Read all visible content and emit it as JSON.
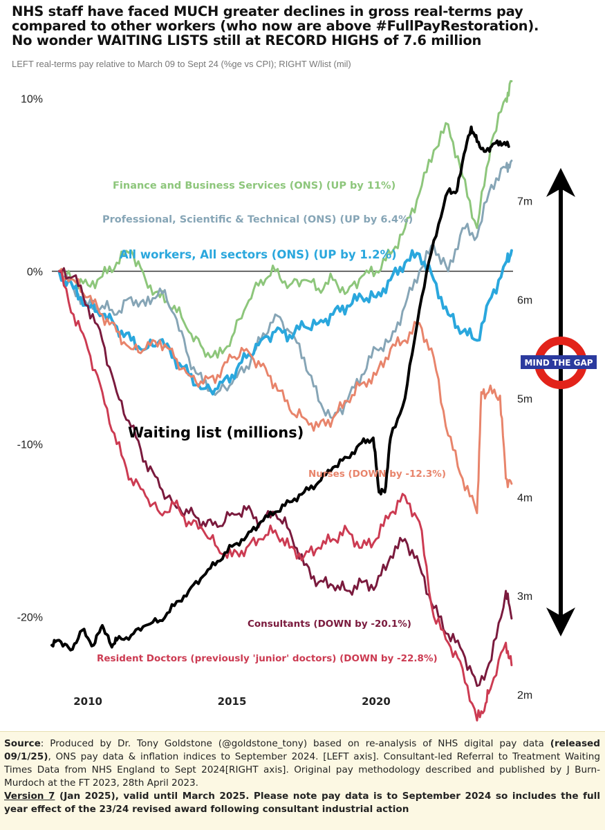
{
  "header": {
    "title_lines": [
      "NHS staff have faced MUCH greater declines in gross real-terms pay",
      "compared to other workers (who now are above #FullPayRestoration).",
      "No wonder WAITING LISTS still at RECORD HIGHS of 7.6 million"
    ],
    "subtitle": "LEFT real-terms pay relative to March 09 to Sept 24 (%ge vs CPI); RIGHT W/list (mil)"
  },
  "chart_data": {
    "type": "line",
    "x_range": [
      2008.75,
      2024.75
    ],
    "x_ticks": [
      2010,
      2015,
      2020
    ],
    "x_tick_labels": [
      "2010",
      "2015",
      "2020"
    ],
    "left_axis": {
      "range": [
        -26.5,
        11.5
      ],
      "ticks": [
        10,
        0,
        -10,
        -20
      ],
      "tick_labels": [
        "10%",
        "0%",
        "-10%",
        "-20%"
      ]
    },
    "right_axis": {
      "range": [
        1.65,
        8.3
      ],
      "ticks": [
        7,
        6,
        5,
        4,
        3,
        2
      ],
      "tick_labels": [
        "7m",
        "6m",
        "5m",
        "4m",
        "3m",
        "2m"
      ]
    },
    "zero_line": true,
    "grid": false,
    "series": [
      {
        "name": "Finance and Business Services (ONS) (UP by 11%)",
        "axis": "left",
        "color": "#8dc67b",
        "width": 3,
        "points": [
          [
            2009.0,
            0.0
          ],
          [
            2009.5,
            -0.5
          ],
          [
            2010.0,
            -0.8
          ],
          [
            2010.5,
            -0.3
          ],
          [
            2011.0,
            0.5
          ],
          [
            2011.5,
            1.2
          ],
          [
            2012.0,
            -0.5
          ],
          [
            2012.5,
            -1.5
          ],
          [
            2013.0,
            -2.0
          ],
          [
            2013.5,
            -3.5
          ],
          [
            2014.0,
            -4.5
          ],
          [
            2014.5,
            -5.0
          ],
          [
            2015.0,
            -3.8
          ],
          [
            2015.5,
            -2.0
          ],
          [
            2016.0,
            -0.5
          ],
          [
            2016.5,
            0.0
          ],
          [
            2017.0,
            -0.8
          ],
          [
            2017.5,
            -0.5
          ],
          [
            2018.0,
            -1.0
          ],
          [
            2018.5,
            -0.5
          ],
          [
            2019.0,
            -1.2
          ],
          [
            2019.5,
            -0.3
          ],
          [
            2020.0,
            0.0
          ],
          [
            2020.5,
            1.0
          ],
          [
            2021.0,
            2.5
          ],
          [
            2021.5,
            4.5
          ],
          [
            2022.0,
            7.0
          ],
          [
            2022.5,
            8.5
          ],
          [
            2023.0,
            5.5
          ],
          [
            2023.5,
            2.5
          ],
          [
            2024.0,
            7.5
          ],
          [
            2024.5,
            10.0
          ],
          [
            2024.7,
            11.0
          ]
        ]
      },
      {
        "name": "Professional, Scientific & Technical (ONS) (UP by 6.4%)",
        "axis": "left",
        "color": "#86a5b6",
        "width": 3,
        "points": [
          [
            2009.0,
            0.0
          ],
          [
            2009.5,
            -1.0
          ],
          [
            2010.0,
            -2.0
          ],
          [
            2010.5,
            -2.0
          ],
          [
            2011.0,
            -2.5
          ],
          [
            2011.5,
            -1.5
          ],
          [
            2012.0,
            -2.0
          ],
          [
            2012.5,
            -1.0
          ],
          [
            2013.0,
            -2.5
          ],
          [
            2013.5,
            -5.0
          ],
          [
            2014.0,
            -6.5
          ],
          [
            2014.5,
            -7.0
          ],
          [
            2015.0,
            -6.5
          ],
          [
            2015.5,
            -5.5
          ],
          [
            2016.0,
            -4.0
          ],
          [
            2016.5,
            -2.5
          ],
          [
            2017.0,
            -3.5
          ],
          [
            2017.5,
            -5.0
          ],
          [
            2018.0,
            -7.5
          ],
          [
            2018.5,
            -8.5
          ],
          [
            2019.0,
            -7.5
          ],
          [
            2019.5,
            -6.0
          ],
          [
            2020.0,
            -4.5
          ],
          [
            2020.5,
            -4.0
          ],
          [
            2021.0,
            -2.0
          ],
          [
            2021.5,
            0.0
          ],
          [
            2022.0,
            1.5
          ],
          [
            2022.5,
            0.0
          ],
          [
            2023.0,
            2.5
          ],
          [
            2023.5,
            2.0
          ],
          [
            2024.0,
            5.0
          ],
          [
            2024.5,
            6.0
          ],
          [
            2024.7,
            6.4
          ]
        ]
      },
      {
        "name": "All workers, All sectors (ONS) (UP by 1.2%)",
        "axis": "left",
        "color": "#2aa7dd",
        "width": 4,
        "points": [
          [
            2009.0,
            0.0
          ],
          [
            2009.5,
            -1.0
          ],
          [
            2010.0,
            -2.0
          ],
          [
            2010.5,
            -2.5
          ],
          [
            2011.0,
            -3.2
          ],
          [
            2011.5,
            -4.0
          ],
          [
            2012.0,
            -4.5
          ],
          [
            2012.5,
            -4.0
          ],
          [
            2013.0,
            -5.0
          ],
          [
            2013.5,
            -6.0
          ],
          [
            2014.0,
            -6.8
          ],
          [
            2014.5,
            -6.8
          ],
          [
            2015.0,
            -6.0
          ],
          [
            2015.5,
            -5.0
          ],
          [
            2016.0,
            -4.0
          ],
          [
            2016.5,
            -3.5
          ],
          [
            2017.0,
            -3.7
          ],
          [
            2017.5,
            -3.2
          ],
          [
            2018.0,
            -3.0
          ],
          [
            2018.5,
            -2.5
          ],
          [
            2019.0,
            -2.0
          ],
          [
            2019.5,
            -1.5
          ],
          [
            2020.0,
            -1.5
          ],
          [
            2020.5,
            -0.5
          ],
          [
            2021.0,
            0.5
          ],
          [
            2021.5,
            1.0
          ],
          [
            2022.0,
            -0.5
          ],
          [
            2022.5,
            -2.5
          ],
          [
            2023.0,
            -3.5
          ],
          [
            2023.5,
            -4.0
          ],
          [
            2024.0,
            -1.5
          ],
          [
            2024.5,
            0.5
          ],
          [
            2024.7,
            1.2
          ]
        ]
      },
      {
        "name": "Nurses (DOWN by -12.3%)",
        "axis": "left",
        "color": "#e8846b",
        "width": 3,
        "points": [
          [
            2009.0,
            0.0
          ],
          [
            2009.5,
            -0.5
          ],
          [
            2010.0,
            -1.5
          ],
          [
            2010.5,
            -2.5
          ],
          [
            2011.0,
            -3.5
          ],
          [
            2011.5,
            -4.5
          ],
          [
            2012.0,
            -4.5
          ],
          [
            2012.5,
            -4.0
          ],
          [
            2013.0,
            -5.0
          ],
          [
            2013.5,
            -6.0
          ],
          [
            2014.0,
            -6.5
          ],
          [
            2014.5,
            -6.0
          ],
          [
            2015.0,
            -5.0
          ],
          [
            2015.5,
            -4.5
          ],
          [
            2016.0,
            -5.5
          ],
          [
            2016.5,
            -6.5
          ],
          [
            2017.0,
            -8.0
          ],
          [
            2017.5,
            -8.5
          ],
          [
            2018.0,
            -9.0
          ],
          [
            2018.5,
            -8.5
          ],
          [
            2019.0,
            -7.5
          ],
          [
            2019.5,
            -6.5
          ],
          [
            2020.0,
            -6.0
          ],
          [
            2020.5,
            -4.5
          ],
          [
            2021.0,
            -4.0
          ],
          [
            2021.5,
            -3.0
          ],
          [
            2022.0,
            -5.0
          ],
          [
            2022.5,
            -9.5
          ],
          [
            2023.0,
            -12.0
          ],
          [
            2023.5,
            -14.0
          ],
          [
            2023.65,
            -7.0
          ],
          [
            2023.9,
            -7.0
          ],
          [
            2024.3,
            -7.2
          ],
          [
            2024.5,
            -12.0
          ],
          [
            2024.7,
            -12.3
          ]
        ]
      },
      {
        "name": "Consultants (DOWN by -20.1%)",
        "axis": "left",
        "color": "#7a1a3d",
        "width": 3,
        "points": [
          [
            2009.0,
            0.0
          ],
          [
            2009.5,
            -0.3
          ],
          [
            2010.0,
            -2.0
          ],
          [
            2010.5,
            -4.0
          ],
          [
            2011.0,
            -7.0
          ],
          [
            2011.5,
            -9.0
          ],
          [
            2012.0,
            -11.0
          ],
          [
            2012.5,
            -12.5
          ],
          [
            2013.0,
            -13.5
          ],
          [
            2013.5,
            -14.0
          ],
          [
            2014.0,
            -14.5
          ],
          [
            2014.5,
            -14.8
          ],
          [
            2015.0,
            -14.0
          ],
          [
            2015.5,
            -13.8
          ],
          [
            2016.0,
            -14.5
          ],
          [
            2016.5,
            -14.0
          ],
          [
            2017.0,
            -15.0
          ],
          [
            2017.5,
            -17.0
          ],
          [
            2018.0,
            -18.0
          ],
          [
            2018.5,
            -18.2
          ],
          [
            2019.0,
            -18.5
          ],
          [
            2019.5,
            -18.0
          ],
          [
            2020.0,
            -18.2
          ],
          [
            2020.5,
            -16.5
          ],
          [
            2021.0,
            -15.5
          ],
          [
            2021.5,
            -17.0
          ],
          [
            2022.0,
            -19.5
          ],
          [
            2022.5,
            -21.0
          ],
          [
            2023.0,
            -22.0
          ],
          [
            2023.5,
            -24.0
          ],
          [
            2024.0,
            -22.5
          ],
          [
            2024.5,
            -18.5
          ],
          [
            2024.7,
            -20.1
          ]
        ]
      },
      {
        "name": "Resident Doctors (previously 'junior' doctors) (DOWN by -22.8%)",
        "axis": "left",
        "color": "#cc3b52",
        "width": 3,
        "points": [
          [
            2009.0,
            0.0
          ],
          [
            2009.5,
            -2.5
          ],
          [
            2010.0,
            -4.5
          ],
          [
            2010.5,
            -7.0
          ],
          [
            2011.0,
            -10.0
          ],
          [
            2011.5,
            -12.0
          ],
          [
            2012.0,
            -13.0
          ],
          [
            2012.5,
            -14.0
          ],
          [
            2013.0,
            -13.5
          ],
          [
            2013.5,
            -14.5
          ],
          [
            2014.0,
            -15.0
          ],
          [
            2014.5,
            -16.0
          ],
          [
            2015.0,
            -16.5
          ],
          [
            2015.5,
            -16.0
          ],
          [
            2016.0,
            -15.5
          ],
          [
            2016.5,
            -15.0
          ],
          [
            2017.0,
            -16.0
          ],
          [
            2017.5,
            -16.5
          ],
          [
            2018.0,
            -16.0
          ],
          [
            2018.5,
            -15.5
          ],
          [
            2019.0,
            -15.0
          ],
          [
            2019.5,
            -16.0
          ],
          [
            2020.0,
            -15.5
          ],
          [
            2020.5,
            -14.0
          ],
          [
            2021.0,
            -13.0
          ],
          [
            2021.5,
            -14.5
          ],
          [
            2022.0,
            -20.0
          ],
          [
            2022.5,
            -21.5
          ],
          [
            2023.0,
            -23.0
          ],
          [
            2023.5,
            -26.0
          ],
          [
            2023.8,
            -25.0
          ],
          [
            2024.0,
            -24.0
          ],
          [
            2024.5,
            -21.5
          ],
          [
            2024.7,
            -22.8
          ]
        ]
      },
      {
        "name": "Waiting list (millions)",
        "axis": "right",
        "color": "#000000",
        "width": 4,
        "points": [
          [
            2008.75,
            2.5
          ],
          [
            2009.0,
            2.55
          ],
          [
            2009.4,
            2.45
          ],
          [
            2009.8,
            2.65
          ],
          [
            2010.2,
            2.5
          ],
          [
            2010.5,
            2.7
          ],
          [
            2010.8,
            2.5
          ],
          [
            2011.0,
            2.55
          ],
          [
            2011.5,
            2.6
          ],
          [
            2012.0,
            2.7
          ],
          [
            2012.5,
            2.75
          ],
          [
            2013.0,
            2.9
          ],
          [
            2013.5,
            3.05
          ],
          [
            2014.0,
            3.2
          ],
          [
            2014.5,
            3.35
          ],
          [
            2015.0,
            3.5
          ],
          [
            2015.5,
            3.6
          ],
          [
            2016.0,
            3.75
          ],
          [
            2016.5,
            3.85
          ],
          [
            2017.0,
            3.95
          ],
          [
            2017.5,
            4.05
          ],
          [
            2018.0,
            4.15
          ],
          [
            2018.5,
            4.3
          ],
          [
            2019.0,
            4.4
          ],
          [
            2019.5,
            4.55
          ],
          [
            2019.9,
            4.6
          ],
          [
            2020.1,
            4.05
          ],
          [
            2020.3,
            4.05
          ],
          [
            2020.5,
            4.6
          ],
          [
            2021.0,
            5.0
          ],
          [
            2021.5,
            5.9
          ],
          [
            2022.0,
            6.6
          ],
          [
            2022.5,
            7.1
          ],
          [
            2022.8,
            7.1
          ],
          [
            2023.0,
            7.4
          ],
          [
            2023.3,
            7.75
          ],
          [
            2023.5,
            7.6
          ],
          [
            2023.8,
            7.5
          ],
          [
            2024.0,
            7.55
          ],
          [
            2024.3,
            7.6
          ],
          [
            2024.6,
            7.55
          ]
        ]
      }
    ],
    "annotations": {
      "finance": "Finance and Business Services (ONS) (UP by 11%)",
      "professional": "Professional, Scientific & Technical (ONS) (UP by 6.4%)",
      "allworkers": "All workers, All sectors (ONS) (UP by 1.2%)",
      "waiting": "Waiting list (millions)",
      "nurses": "Nurses (DOWN by -12.3%)",
      "consultants": "Consultants (DOWN by -20.1%)",
      "residents": "Resident Doctors (previously 'junior' doctors) (DOWN by -22.8%)",
      "mind_the_gap": "MIND THE GAP"
    }
  },
  "footer": {
    "source_label": "Source",
    "source_text_1": ": Produced by Dr. Tony Goldstone (@goldstone_tony) based on re-analysis of NHS digital pay data ",
    "source_bold_1": "(released 09/1/25)",
    "source_text_2": ", ONS pay data & inflation indices to September 2024. [LEFT axis]. Consultant-led Referral to Treatment Waiting Times Data from NHS England to Sept 2024[RIGHT axis]. Original pay methodology described and published by J Burn-Murdoch at the FT 2023, 28th April 2023.",
    "version_label": "Version 7",
    "version_text": " (Jan 2025), valid until March 2025. Please note pay data is to September 2024 so includes the full year effect of the 23/24 revised award following consultant industrial action"
  }
}
